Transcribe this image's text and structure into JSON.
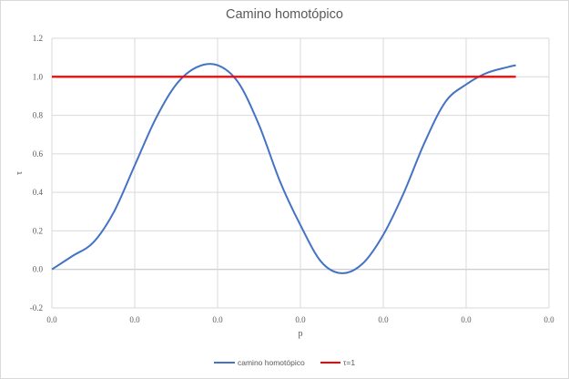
{
  "chart_data": {
    "type": "line",
    "title": "Camino homotópico",
    "xlabel": "p",
    "ylabel": "τ",
    "x_tick_labels": [
      "0.0",
      "0.0",
      "0.0",
      "0.0",
      "0.0",
      "0.0",
      "0.0"
    ],
    "y_ticks": [
      -0.2,
      0.0,
      0.2,
      0.4,
      0.6,
      0.8,
      1.0,
      1.2
    ],
    "y_tick_labels": [
      "-0.2",
      "0.0",
      "0.2",
      "0.4",
      "0.6",
      "0.8",
      "1.0",
      "1.2"
    ],
    "xlim": [
      0,
      6
    ],
    "ylim": [
      -0.2,
      1.2
    ],
    "grid": true,
    "legend_position": "bottom",
    "series": [
      {
        "name": "camino homotópico",
        "color": "#4472C4",
        "x": [
          0.0,
          0.25,
          0.5,
          0.75,
          1.0,
          1.25,
          1.5,
          1.75,
          2.0,
          2.25,
          2.5,
          2.75,
          3.0,
          3.25,
          3.5,
          3.75,
          4.0,
          4.25,
          4.5,
          4.75,
          5.0,
          5.25,
          5.5,
          5.6
        ],
        "y": [
          0.0,
          0.07,
          0.14,
          0.3,
          0.54,
          0.78,
          0.96,
          1.05,
          1.06,
          0.97,
          0.75,
          0.46,
          0.23,
          0.04,
          -0.02,
          0.03,
          0.18,
          0.4,
          0.66,
          0.87,
          0.96,
          1.02,
          1.05,
          1.06
        ]
      },
      {
        "name": "τ=1",
        "color": "#FF0000",
        "x": [
          0.0,
          5.6
        ],
        "y": [
          1.0,
          1.0
        ]
      }
    ]
  }
}
